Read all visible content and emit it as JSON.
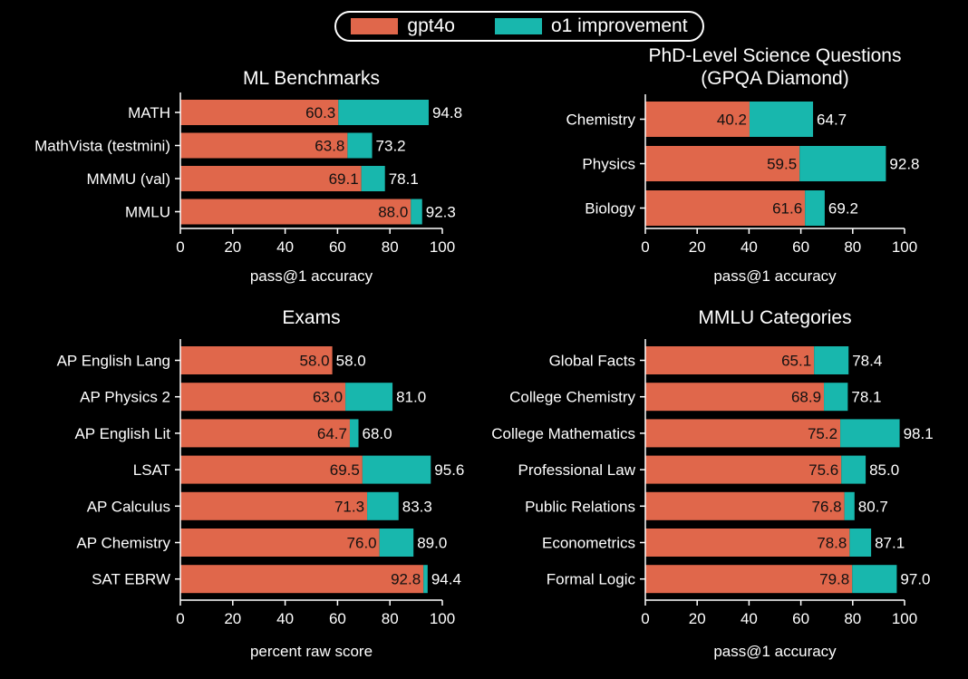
{
  "legend": {
    "gpt4o_label": "gpt4o",
    "o1_label": "o1 improvement",
    "position": "top-center"
  },
  "colors": {
    "gpt4o": "#e0674b",
    "o1": "#18b7ad",
    "background": "#000000",
    "text": "#ffffff"
  },
  "chart_data": [
    {
      "type": "bar",
      "orientation": "horizontal",
      "stacked": true,
      "title": "ML Benchmarks",
      "xlabel": "pass@1 accuracy",
      "xlim": [
        0,
        100
      ],
      "xticks": [
        0,
        20,
        40,
        60,
        80,
        100
      ],
      "categories": [
        "MATH",
        "MathVista (testmini)",
        "MMMU (val)",
        "MMLU"
      ],
      "series": [
        {
          "name": "gpt4o",
          "values": [
            60.3,
            63.8,
            69.1,
            88.0
          ],
          "labels": [
            "60.3",
            "63.8",
            "69.1",
            "88.0"
          ]
        },
        {
          "name": "o1 improvement",
          "totals": [
            94.8,
            73.2,
            78.1,
            92.3
          ],
          "labels": [
            "94.8",
            "73.2",
            "78.1",
            "92.3"
          ]
        }
      ]
    },
    {
      "type": "bar",
      "orientation": "horizontal",
      "stacked": true,
      "title": "PhD-Level Science Questions\n(GPQA Diamond)",
      "xlabel": "pass@1 accuracy",
      "xlim": [
        0,
        100
      ],
      "xticks": [
        0,
        20,
        40,
        60,
        80,
        100
      ],
      "categories": [
        "Chemistry",
        "Physics",
        "Biology"
      ],
      "series": [
        {
          "name": "gpt4o",
          "values": [
            40.2,
            59.5,
            61.6
          ],
          "labels": [
            "40.2",
            "59.5",
            "61.6"
          ]
        },
        {
          "name": "o1 improvement",
          "totals": [
            64.7,
            92.8,
            69.2
          ],
          "labels": [
            "64.7",
            "92.8",
            "69.2"
          ]
        }
      ]
    },
    {
      "type": "bar",
      "orientation": "horizontal",
      "stacked": true,
      "title": "Exams",
      "xlabel": "percent raw score",
      "xlim": [
        0,
        100
      ],
      "xticks": [
        0,
        20,
        40,
        60,
        80,
        100
      ],
      "categories": [
        "AP English Lang",
        "AP Physics 2",
        "AP English Lit",
        "LSAT",
        "AP Calculus",
        "AP Chemistry",
        "SAT EBRW"
      ],
      "series": [
        {
          "name": "gpt4o",
          "values": [
            58.0,
            63.0,
            64.7,
            69.5,
            71.3,
            76.0,
            92.8
          ],
          "labels": [
            "58.0",
            "63.0",
            "64.7",
            "69.5",
            "71.3",
            "76.0",
            "92.8"
          ]
        },
        {
          "name": "o1 improvement",
          "totals": [
            58.0,
            81.0,
            68.0,
            95.6,
            83.3,
            89.0,
            94.4
          ],
          "labels": [
            "58.0",
            "81.0",
            "68.0",
            "95.6",
            "83.3",
            "89.0",
            "94.4"
          ]
        }
      ]
    },
    {
      "type": "bar",
      "orientation": "horizontal",
      "stacked": true,
      "title": "MMLU Categories",
      "xlabel": "pass@1 accuracy",
      "xlim": [
        0,
        100
      ],
      "xticks": [
        0,
        20,
        40,
        60,
        80,
        100
      ],
      "categories": [
        "Global Facts",
        "College Chemistry",
        "College Mathematics",
        "Professional Law",
        "Public Relations",
        "Econometrics",
        "Formal Logic"
      ],
      "series": [
        {
          "name": "gpt4o",
          "values": [
            65.1,
            68.9,
            75.2,
            75.6,
            76.8,
            78.8,
            79.8
          ],
          "labels": [
            "65.1",
            "68.9",
            "75.2",
            "75.6",
            "76.8",
            "78.8",
            "79.8"
          ]
        },
        {
          "name": "o1 improvement",
          "totals": [
            78.4,
            78.1,
            98.1,
            85.0,
            80.7,
            87.1,
            97.0
          ],
          "labels": [
            "78.4",
            "78.1",
            "98.1",
            "85.0",
            "80.7",
            "87.1",
            "97.0"
          ]
        }
      ]
    }
  ]
}
